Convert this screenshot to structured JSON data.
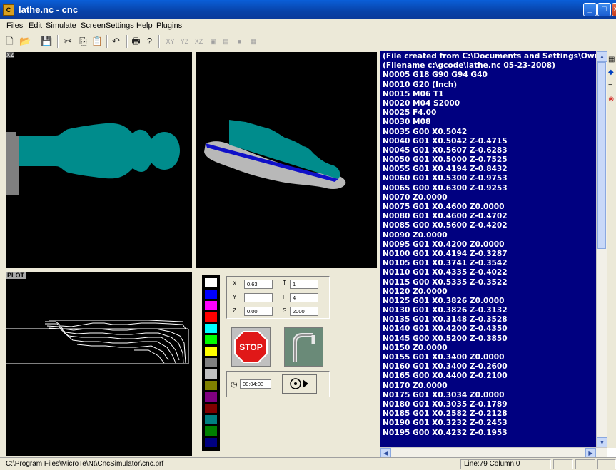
{
  "window": {
    "title": "lathe.nc - cnc",
    "app_icon": "CNC",
    "controls": [
      "minimize-icon",
      "maximize-icon",
      "close-icon"
    ]
  },
  "menu": [
    "Files",
    "Edit",
    "Simulate",
    "Screen",
    "Settings",
    "Help",
    "Plugins"
  ],
  "toolbar": {
    "buttons": [
      "new-file-icon",
      "open-icon",
      "save-icon",
      "cut-icon",
      "copy-icon",
      "paste-icon",
      "undo-icon",
      "print-icon",
      "help-icon"
    ],
    "view_buttons": [
      "XY",
      "YZ",
      "XZ"
    ]
  },
  "views": {
    "xz_label": "XZ",
    "plot_label": "PLOT"
  },
  "readouts": {
    "x_label": "X",
    "x_value": "0.63",
    "y_label": "Y",
    "y_value": "",
    "z_label": "Z",
    "z_value": "0.00",
    "t_label": "T",
    "t_value": "1",
    "f_label": "F",
    "f_value": "4",
    "s_label": "S",
    "s_value": "2000"
  },
  "stop_label": "STOP",
  "timer": "00:04:03",
  "palette_colors": [
    "#ffffff",
    "#0000ff",
    "#ff00ff",
    "#ff0000",
    "#00ffff",
    "#00ff00",
    "#ffff00",
    "#808080",
    "#c0c0c0",
    "#808000",
    "#800080",
    "#800000",
    "#008080",
    "#008000",
    "#000080"
  ],
  "gcode": [
    "(File created from C:\\Documents and Settings\\Owner\\D",
    "(Filename c:\\gcode\\lathe.nc 05-23-2008)",
    "N0005 G18 G90 G94 G40",
    "N0010 G20 (Inch)",
    "N0015 M06 T1",
    "N0020 M04 S2000",
    "N0025 F4.00",
    "N0030 M08",
    "N0035 G00 X0.5042",
    "N0040 G01 X0.5042 Z-0.4715",
    "N0045 G01 X0.5607 Z-0.6283",
    "N0050 G01 X0.5000 Z-0.7525",
    "N0055 G01 X0.4194 Z-0.8432",
    "N0060 G01 X0.5300 Z-0.9753",
    "N0065 G00 X0.6300 Z-0.9253",
    "N0070 Z0.0000",
    "N0075 G01 X0.4600 Z0.0000",
    "N0080 G01 X0.4600 Z-0.4702",
    "N0085 G00 X0.5600 Z-0.4202",
    "N0090 Z0.0000",
    "N0095 G01 X0.4200 Z0.0000",
    "N0100 G01 X0.4194 Z-0.3287",
    "N0105 G01 X0.3741 Z-0.3542",
    "N0110 G01 X0.4335 Z-0.4022",
    "N0115 G00 X0.5335 Z-0.3522",
    "N0120 Z0.0000",
    "N0125 G01 X0.3826 Z0.0000",
    "N0130 G01 X0.3826 Z-0.3132",
    "N0135 G01 X0.3148 Z-0.3528",
    "N0140 G01 X0.4200 Z-0.4350",
    "N0145 G00 X0.5200 Z-0.3850",
    "N0150 Z0.0000",
    "N0155 G01 X0.3400 Z0.0000",
    "N0160 G01 X0.3400 Z-0.2600",
    "N0165 G00 X0.4400 Z-0.2100",
    "N0170 Z0.0000",
    "N0175 G01 X0.3034 Z0.0000",
    "N0180 G01 X0.3035 Z-0.1789",
    "N0185 G01 X0.2582 Z-0.2128",
    "N0190 G01 X0.3232 Z-0.2453",
    "N0195 G00 X0.4232 Z-0.1953"
  ],
  "side_tools": [
    "grid-icon",
    "arrow-left-icon",
    "minus-icon",
    "stop-icon"
  ],
  "status": {
    "path": "C:\\Program Files\\MicroTe\\Nt\\CncSimulator\\cnc.prf",
    "position": "Line:79 Column:0"
  }
}
